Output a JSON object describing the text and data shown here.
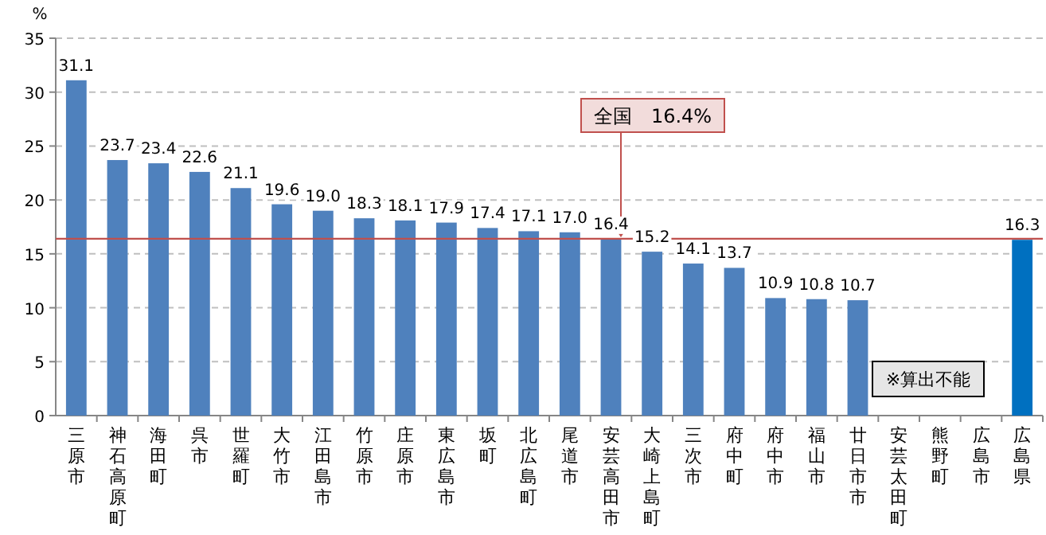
{
  "chart_data": {
    "type": "bar",
    "ylabel": "%",
    "categories": [
      "三原市",
      "神石高原町",
      "海田町",
      "呉市",
      "世羅町",
      "大竹市",
      "江田島市",
      "竹原市",
      "庄原市",
      "東広島市",
      "坂町",
      "北広島町",
      "尾道市",
      "安芸高田市",
      "大崎上島町",
      "三次市",
      "府中町",
      "府中市",
      "福山市",
      "廿日市市",
      "安芸太田町",
      "熊野町",
      "広島市",
      "広島県"
    ],
    "values": [
      31.1,
      23.7,
      23.4,
      22.6,
      21.1,
      19.6,
      19.0,
      18.3,
      18.1,
      17.9,
      17.4,
      17.1,
      17.0,
      16.4,
      15.2,
      14.1,
      13.7,
      10.9,
      10.8,
      10.7,
      null,
      null,
      null,
      16.3
    ],
    "colors": [
      "#4f81bd",
      "#4f81bd",
      "#4f81bd",
      "#4f81bd",
      "#4f81bd",
      "#4f81bd",
      "#4f81bd",
      "#4f81bd",
      "#4f81bd",
      "#4f81bd",
      "#4f81bd",
      "#4f81bd",
      "#4f81bd",
      "#4f81bd",
      "#4f81bd",
      "#4f81bd",
      "#4f81bd",
      "#4f81bd",
      "#4f81bd",
      "#4f81bd",
      "#4f81bd",
      "#4f81bd",
      "#4f81bd",
      "#0070c0"
    ],
    "value_labels": [
      "31.1",
      "23.7",
      "23.4",
      "22.6",
      "21.1",
      "19.6",
      "19.0",
      "18.3",
      "18.1",
      "17.9",
      "17.4",
      "17.1",
      "17.0",
      "16.4",
      "15.2",
      "14.1",
      "13.7",
      "10.9",
      "10.8",
      "10.7",
      null,
      null,
      null,
      "16.3"
    ],
    "ylim": [
      0,
      35
    ],
    "yticks": [
      0,
      5,
      10,
      15,
      20,
      25,
      30,
      35
    ],
    "grid": "y",
    "ref_lines": [
      {
        "axis": "y",
        "value": 16.4,
        "label": "全国　16.4%",
        "color": "#c0504d"
      }
    ],
    "annotations": [
      "※算出不能"
    ]
  }
}
